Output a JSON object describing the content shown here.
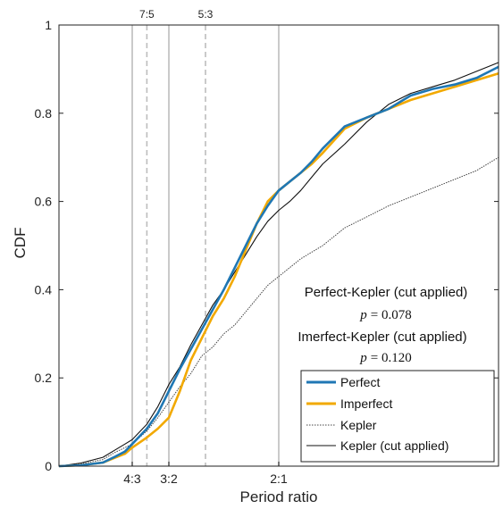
{
  "chart_data": {
    "type": "line",
    "xlabel": "Period ratio",
    "ylabel": "CDF",
    "xlim": [
      1.0,
      3.0
    ],
    "ylim": [
      0,
      1
    ],
    "grid": false,
    "legend_position": "bottom-right",
    "yticks": [
      {
        "value": 0,
        "label": "0"
      },
      {
        "value": 0.2,
        "label": "0.2"
      },
      {
        "value": 0.4,
        "label": "0.4"
      },
      {
        "value": 0.6,
        "label": "0.6"
      },
      {
        "value": 0.8,
        "label": "0.8"
      },
      {
        "value": 1,
        "label": "1"
      }
    ],
    "resonances": [
      {
        "label": "4:3",
        "value": 1.3333,
        "style": "solid",
        "label_position": "bottom"
      },
      {
        "label": "7:5",
        "value": 1.4,
        "style": "dashed",
        "label_position": "top"
      },
      {
        "label": "3:2",
        "value": 1.5,
        "style": "solid",
        "label_position": "bottom"
      },
      {
        "label": "5:3",
        "value": 1.6667,
        "style": "dashed",
        "label_position": "top"
      },
      {
        "label": "2:1",
        "value": 2.0,
        "style": "solid",
        "label_position": "bottom"
      }
    ],
    "annotations": [
      {
        "line1": "Perfect-Kepler (cut applied)",
        "stat_symbol": "p",
        "stat_value": "= 0.078"
      },
      {
        "line1": "Imerfect-Kepler (cut applied)",
        "stat_symbol": "p",
        "stat_value": "= 0.120"
      }
    ],
    "series": [
      {
        "name": "Perfect",
        "color": "#1f77b4",
        "line": "solid-thick",
        "x": [
          1.0,
          1.1,
          1.2,
          1.25,
          1.3,
          1.333,
          1.4,
          1.45,
          1.5,
          1.55,
          1.6,
          1.65,
          1.7,
          1.75,
          1.8,
          1.85,
          1.9,
          1.95,
          2.0,
          2.05,
          2.1,
          2.15,
          2.2,
          2.3,
          2.4,
          2.5,
          2.6,
          2.7,
          2.8,
          2.9,
          3.0
        ],
        "y": [
          0.0,
          0.002,
          0.008,
          0.02,
          0.033,
          0.05,
          0.085,
          0.12,
          0.17,
          0.22,
          0.265,
          0.31,
          0.355,
          0.4,
          0.45,
          0.5,
          0.55,
          0.59,
          0.625,
          0.645,
          0.665,
          0.69,
          0.72,
          0.77,
          0.79,
          0.81,
          0.84,
          0.855,
          0.865,
          0.88,
          0.905
        ]
      },
      {
        "name": "Imperfect",
        "color": "#f2a900",
        "line": "solid-thick",
        "x": [
          1.0,
          1.1,
          1.2,
          1.25,
          1.3,
          1.333,
          1.4,
          1.45,
          1.5,
          1.55,
          1.6,
          1.65,
          1.7,
          1.75,
          1.8,
          1.85,
          1.9,
          1.95,
          2.0,
          2.05,
          2.1,
          2.15,
          2.2,
          2.3,
          2.4,
          2.5,
          2.6,
          2.7,
          2.8,
          2.9,
          3.0
        ],
        "y": [
          0.0,
          0.002,
          0.008,
          0.018,
          0.028,
          0.042,
          0.065,
          0.085,
          0.11,
          0.17,
          0.24,
          0.29,
          0.34,
          0.38,
          0.43,
          0.49,
          0.55,
          0.6,
          0.625,
          0.645,
          0.665,
          0.685,
          0.71,
          0.765,
          0.79,
          0.81,
          0.83,
          0.845,
          0.86,
          0.875,
          0.89
        ]
      },
      {
        "name": "Kepler",
        "color": "#444444",
        "line": "dotted",
        "x": [
          1.0,
          1.1,
          1.2,
          1.25,
          1.3,
          1.333,
          1.4,
          1.45,
          1.5,
          1.55,
          1.6,
          1.65,
          1.7,
          1.75,
          1.8,
          1.85,
          1.9,
          1.95,
          2.0,
          2.1,
          2.2,
          2.3,
          2.4,
          2.5,
          2.6,
          2.7,
          2.8,
          2.9,
          3.0
        ],
        "y": [
          0.0,
          0.005,
          0.015,
          0.03,
          0.042,
          0.05,
          0.08,
          0.11,
          0.145,
          0.18,
          0.21,
          0.25,
          0.27,
          0.3,
          0.32,
          0.35,
          0.38,
          0.41,
          0.43,
          0.47,
          0.5,
          0.54,
          0.565,
          0.59,
          0.61,
          0.63,
          0.65,
          0.67,
          0.7
        ]
      },
      {
        "name": "Kepler (cut applied)",
        "color": "#111111",
        "line": "solid-thin",
        "x": [
          1.0,
          1.1,
          1.2,
          1.25,
          1.3,
          1.333,
          1.4,
          1.45,
          1.5,
          1.55,
          1.6,
          1.65,
          1.7,
          1.75,
          1.8,
          1.85,
          1.9,
          1.95,
          2.0,
          2.05,
          2.1,
          2.15,
          2.2,
          2.3,
          2.4,
          2.5,
          2.6,
          2.7,
          2.8,
          2.9,
          3.0
        ],
        "y": [
          0.0,
          0.007,
          0.02,
          0.035,
          0.05,
          0.06,
          0.095,
          0.135,
          0.185,
          0.225,
          0.275,
          0.32,
          0.365,
          0.4,
          0.44,
          0.48,
          0.52,
          0.555,
          0.58,
          0.6,
          0.625,
          0.655,
          0.685,
          0.73,
          0.78,
          0.82,
          0.845,
          0.86,
          0.875,
          0.895,
          0.915
        ]
      }
    ]
  }
}
